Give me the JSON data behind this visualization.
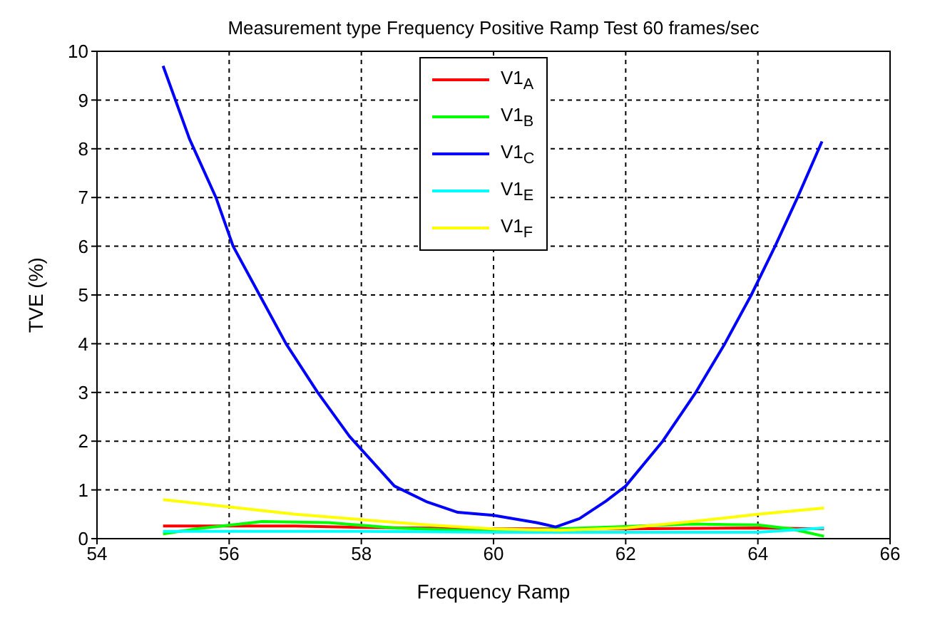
{
  "chart_data": {
    "type": "line",
    "title": "Measurement type Frequency Positive Ramp Test 60 frames/sec",
    "xlabel": "Frequency Ramp",
    "ylabel": "TVE (%)",
    "xlim": [
      54,
      66
    ],
    "xticks": [
      54,
      56,
      58,
      60,
      62,
      64,
      66
    ],
    "ylim": [
      0,
      10
    ],
    "yticks": [
      0,
      1,
      2,
      3,
      4,
      5,
      6,
      7,
      8,
      9,
      10
    ],
    "grid": true,
    "legend": "top",
    "series": [
      {
        "name": "V1$_{A}$",
        "color": "#ff0000",
        "x": [
          55,
          57,
          58,
          60,
          61,
          62,
          64,
          65
        ],
        "values": [
          0.26,
          0.26,
          0.23,
          0.2,
          0.2,
          0.2,
          0.22,
          0.2
        ]
      },
      {
        "name": "V1$_{B}$",
        "color": "#00ff00",
        "x": [
          55,
          55.5,
          56.5,
          57.5,
          58.5,
          60,
          61,
          62,
          63,
          64,
          64.5,
          65
        ],
        "values": [
          0.1,
          0.2,
          0.35,
          0.33,
          0.22,
          0.15,
          0.2,
          0.25,
          0.3,
          0.28,
          0.2,
          0.05
        ]
      },
      {
        "name": "V1$_{C}$",
        "color": "#0000ff",
        "x": [
          55,
          55.4,
          55.8,
          56.06,
          56.46,
          56.86,
          57.34,
          57.82,
          58.5,
          59,
          59.46,
          60,
          60.3,
          60.65,
          60.94,
          61.3,
          61.7,
          62,
          62.56,
          63.06,
          63.5,
          63.9,
          64.26,
          64.6,
          64.97
        ],
        "values": [
          9.7,
          8.2,
          7,
          6,
          5,
          4,
          3,
          2.1,
          1.08,
          0.75,
          0.54,
          0.48,
          0.41,
          0.33,
          0.24,
          0.41,
          0.77,
          1.08,
          2,
          3,
          4,
          5,
          6,
          7,
          8.15
        ]
      },
      {
        "name": "V1$_{E}$",
        "color": "#00ffff",
        "x": [
          55,
          56,
          58,
          60,
          62,
          64,
          65
        ],
        "values": [
          0.15,
          0.15,
          0.15,
          0.13,
          0.13,
          0.13,
          0.22
        ]
      },
      {
        "name": "V1$_{F}$",
        "color": "#ffff00",
        "x": [
          55,
          57,
          59,
          60,
          61,
          62,
          63,
          64,
          65
        ],
        "values": [
          0.8,
          0.5,
          0.28,
          0.2,
          0.17,
          0.22,
          0.35,
          0.5,
          0.63
        ]
      }
    ]
  }
}
